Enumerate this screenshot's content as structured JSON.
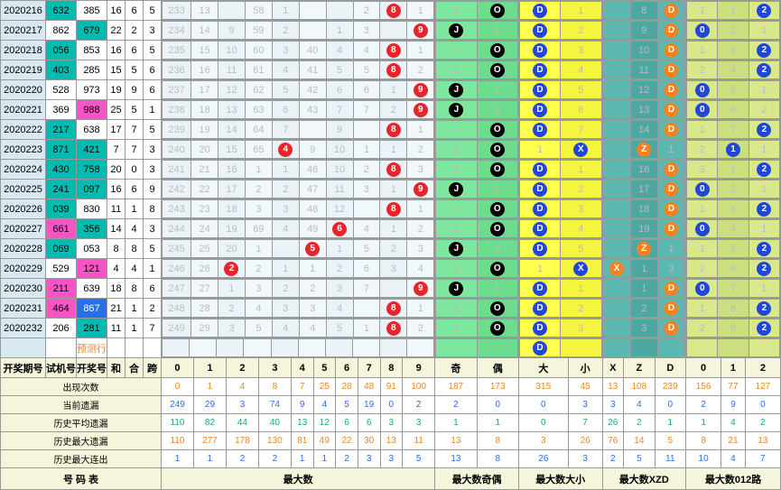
{
  "columns_left": [
    "开奖期号",
    "试机号",
    "开奖号",
    "和",
    "合",
    "跨"
  ],
  "columns_digit": [
    "0",
    "1",
    "2",
    "3",
    "4",
    "5",
    "6",
    "7",
    "8",
    "9"
  ],
  "section_titles": {
    "digit": "最大数",
    "parity": "最大数奇偶",
    "size": "最大数大小",
    "xzd": "最大数XZD",
    "mod": "最大数012路"
  },
  "parity_labels": [
    "奇",
    "偶"
  ],
  "size_labels": [
    "大",
    "小"
  ],
  "xzd_labels": [
    "X",
    "Z",
    "D"
  ],
  "mod_labels": [
    "0",
    "1",
    "2"
  ],
  "predict_label": "预测行",
  "stat_labels": [
    "出现次数",
    "当前遗漏",
    "历史平均遗漏",
    "历史最大遗漏",
    "历史最大连出"
  ],
  "footer": "号 码 表",
  "colors": {
    "cyan": "#00bcb0",
    "mag": "#f954c6",
    "blue2": "#2670e8",
    "red": "#e8252b",
    "black": "#000",
    "blue": "#2047d8",
    "orange": "#f58220",
    "grid_bg": "#eaf4f8",
    "green_bg": "#7de89d",
    "yellow_bg": "#ffff4d",
    "teal_bg": "#5cb8b0",
    "olive_bg": "#d8e88a",
    "beige": "#f5f5dc"
  },
  "rows": [
    {
      "p": "2020216",
      "a": "632",
      "b": "385",
      "c": "16",
      "d": "6",
      "e": "5",
      "ac": "cyan",
      "bc": "",
      "dig": 8,
      "par": "O",
      "sz": "D",
      "xzd": "D",
      "mod": 2,
      "g": [
        233,
        13,
        "",
        58,
        1,
        "",
        "",
        2,
        "",
        1
      ]
    },
    {
      "p": "2020217",
      "a": "862",
      "b": "679",
      "c": "22",
      "d": "2",
      "e": "3",
      "ac": "",
      "bc": "cyan",
      "dig": 9,
      "par": "J",
      "sz": "D",
      "xzd": "D",
      "mod": 0,
      "g": [
        234,
        14,
        9,
        59,
        2,
        "",
        1,
        3,
        "",
        ""
      ]
    },
    {
      "p": "2020218",
      "a": "056",
      "b": "853",
      "c": "16",
      "d": "6",
      "e": "5",
      "ac": "cyan",
      "bc": "",
      "dig": 8,
      "par": "O",
      "sz": "D",
      "xzd": "D",
      "mod": 2,
      "g": [
        235,
        15,
        10,
        60,
        3,
        40,
        4,
        4,
        "",
        1
      ]
    },
    {
      "p": "2020219",
      "a": "403",
      "b": "285",
      "c": "15",
      "d": "5",
      "e": "6",
      "ac": "cyan",
      "bc": "",
      "dig": 8,
      "par": "O",
      "sz": "D",
      "xzd": "D",
      "mod": 2,
      "g": [
        236,
        16,
        11,
        61,
        4,
        41,
        5,
        5,
        "",
        2
      ]
    },
    {
      "p": "2020220",
      "a": "528",
      "b": "973",
      "c": "19",
      "d": "9",
      "e": "6",
      "ac": "",
      "bc": "",
      "dig": 9,
      "par": "J",
      "sz": "D",
      "xzd": "D",
      "mod": 0,
      "g": [
        237,
        17,
        12,
        62,
        5,
        42,
        6,
        6,
        1,
        ""
      ]
    },
    {
      "p": "2020221",
      "a": "369",
      "b": "988",
      "c": "25",
      "d": "5",
      "e": "1",
      "ac": "",
      "bc": "mag",
      "dig": 9,
      "par": "J",
      "sz": "D",
      "xzd": "D",
      "mod": 0,
      "g": [
        238,
        18,
        13,
        63,
        6,
        43,
        7,
        7,
        2,
        ""
      ]
    },
    {
      "p": "2020222",
      "a": "217",
      "b": "638",
      "c": "17",
      "d": "7",
      "e": "5",
      "ac": "cyan",
      "bc": "",
      "dig": 8,
      "par": "O",
      "sz": "D",
      "xzd": "D",
      "mod": 2,
      "g": [
        239,
        19,
        14,
        64,
        7,
        "",
        9,
        "",
        "",
        1
      ]
    },
    {
      "p": "2020223",
      "a": "871",
      "b": "421",
      "c": "7",
      "d": "7",
      "e": "3",
      "ac": "cyan",
      "bc": "cyan",
      "dig": 4,
      "par": "O",
      "sz": "X",
      "xzd": "Z",
      "mod": 1,
      "g": [
        240,
        20,
        15,
        65,
        "",
        9,
        10,
        1,
        1,
        2
      ]
    },
    {
      "p": "2020224",
      "a": "430",
      "b": "758",
      "c": "20",
      "d": "0",
      "e": "3",
      "ac": "cyan",
      "bc": "cyan",
      "dig": 8,
      "par": "O",
      "sz": "D",
      "xzd": "D",
      "mod": 2,
      "g": [
        241,
        21,
        16,
        1,
        1,
        46,
        10,
        2,
        "",
        3
      ]
    },
    {
      "p": "2020225",
      "a": "241",
      "b": "097",
      "c": "16",
      "d": "6",
      "e": "9",
      "ac": "cyan",
      "bc": "cyan",
      "dig": 9,
      "par": "J",
      "sz": "D",
      "xzd": "D",
      "mod": 0,
      "g": [
        242,
        22,
        17,
        2,
        2,
        47,
        11,
        3,
        1,
        ""
      ]
    },
    {
      "p": "2020226",
      "a": "039",
      "b": "830",
      "c": "11",
      "d": "1",
      "e": "8",
      "ac": "cyan",
      "bc": "",
      "dig": 8,
      "par": "O",
      "sz": "D",
      "xzd": "D",
      "mod": 2,
      "g": [
        243,
        23,
        18,
        3,
        3,
        48,
        12,
        "",
        "",
        1
      ]
    },
    {
      "p": "2020227",
      "a": "661",
      "b": "356",
      "c": "14",
      "d": "4",
      "e": "3",
      "ac": "mag",
      "bc": "cyan",
      "dig": 6,
      "par": "O",
      "sz": "D",
      "xzd": "D",
      "mod": 0,
      "g": [
        244,
        24,
        19,
        69,
        4,
        49,
        "",
        4,
        1,
        2
      ]
    },
    {
      "p": "2020228",
      "a": "069",
      "b": "053",
      "c": "8",
      "d": "8",
      "e": "5",
      "ac": "cyan",
      "bc": "",
      "dig": 5,
      "par": "J",
      "sz": "D",
      "xzd": "Z",
      "mod": 2,
      "g": [
        245,
        25,
        20,
        1,
        "",
        "",
        1,
        5,
        2,
        3
      ]
    },
    {
      "p": "2020229",
      "a": "529",
      "b": "121",
      "c": "4",
      "d": "4",
      "e": "1",
      "ac": "",
      "bc": "mag",
      "dig": 2,
      "par": "O",
      "sz": "X",
      "xzd": "X",
      "mod": 2,
      "g": [
        246,
        26,
        "",
        2,
        1,
        1,
        2,
        6,
        3,
        4
      ]
    },
    {
      "p": "2020230",
      "a": "211",
      "b": "639",
      "c": "18",
      "d": "8",
      "e": "6",
      "ac": "mag",
      "bc": "",
      "dig": 9,
      "par": "J",
      "sz": "D",
      "xzd": "D",
      "mod": 0,
      "g": [
        247,
        27,
        1,
        3,
        2,
        2,
        3,
        7,
        "",
        ""
      ]
    },
    {
      "p": "2020231",
      "a": "464",
      "b": "867",
      "c": "21",
      "d": "1",
      "e": "2",
      "ac": "mag",
      "bc": "blue2",
      "dig": 8,
      "par": "O",
      "sz": "D",
      "xzd": "D",
      "mod": 2,
      "g": [
        248,
        28,
        2,
        4,
        3,
        3,
        4,
        "",
        "",
        1
      ]
    },
    {
      "p": "2020232",
      "a": "206",
      "b": "281",
      "c": "11",
      "d": "1",
      "e": "7",
      "ac": "",
      "bc": "cyan",
      "dig": 8,
      "par": "O",
      "sz": "D",
      "xzd": "D",
      "mod": 2,
      "g": [
        249,
        29,
        3,
        5,
        4,
        4,
        5,
        1,
        "",
        2
      ]
    }
  ],
  "predict_extra": {
    "sz": "D"
  },
  "stats": {
    "digit": [
      [
        "0",
        "1",
        "4",
        "8",
        "7",
        "25",
        "28",
        "48",
        "91",
        "100"
      ],
      [
        "249",
        "29",
        "3",
        "74",
        "9",
        "4",
        "5",
        "19",
        "0",
        "2"
      ],
      [
        "110",
        "82",
        "44",
        "40",
        "13",
        "12",
        "6",
        "6",
        "3",
        "3"
      ],
      [
        "110",
        "277",
        "178",
        "130",
        "81",
        "49",
        "22",
        "30",
        "13",
        "11"
      ],
      [
        "1",
        "1",
        "2",
        "2",
        "1",
        "1",
        "2",
        "3",
        "3",
        "5"
      ]
    ],
    "parity": [
      [
        "187",
        "173"
      ],
      [
        "2",
        "0"
      ],
      [
        "1",
        "1"
      ],
      [
        "13",
        "8"
      ],
      [
        "13",
        "8"
      ]
    ],
    "size": [
      [
        "315",
        "45"
      ],
      [
        "0",
        "3"
      ],
      [
        "0",
        "7"
      ],
      [
        "3",
        "26"
      ],
      [
        "26",
        "3"
      ]
    ],
    "xzd": [
      [
        "13",
        "108",
        "239"
      ],
      [
        "3",
        "4",
        "0"
      ],
      [
        "26",
        "2",
        "1"
      ],
      [
        "76",
        "14",
        "5"
      ],
      [
        "2",
        "5",
        "11"
      ]
    ],
    "mod": [
      [
        "156",
        "77",
        "127"
      ],
      [
        "2",
        "9",
        "0"
      ],
      [
        "1",
        "4",
        "2"
      ],
      [
        "8",
        "21",
        "13"
      ],
      [
        "10",
        "4",
        "7"
      ]
    ]
  },
  "grid_extra": {
    "parity_off": {
      "0": [
        "3",
        "1"
      ],
      "1": [
        "",
        "1"
      ],
      "2": [
        "1",
        "2"
      ],
      "3": [
        "2",
        "3"
      ],
      "4": [
        "",
        "1"
      ],
      "5": [
        "",
        "2"
      ],
      "6": [
        "1",
        "1"
      ],
      "7": [
        "2",
        "1"
      ],
      "8": [
        "3",
        "2"
      ],
      "9": [
        "",
        "1"
      ],
      "10": [
        "1",
        "1"
      ],
      "11": [
        "2",
        "2"
      ],
      "12": [
        "",
        "2"
      ],
      "13": [
        "1",
        "1"
      ],
      "14": [
        "",
        "1"
      ],
      "15": [
        "1",
        "2"
      ],
      "16": [
        "2",
        "3"
      ]
    },
    "size_off": {
      "0": [
        "",
        "1"
      ],
      "1": [
        "",
        "2"
      ],
      "2": [
        "",
        "3"
      ],
      "3": [
        "",
        "4"
      ],
      "4": [
        "",
        "5"
      ],
      "5": [
        "",
        "6"
      ],
      "6": [
        "",
        "7"
      ],
      "7": [
        "1",
        ""
      ],
      "8": [
        "",
        "1"
      ],
      "9": [
        "",
        "2"
      ],
      "10": [
        "",
        "3"
      ],
      "11": [
        "",
        "4"
      ],
      "12": [
        "",
        "5"
      ],
      "13": [
        "1",
        ""
      ],
      "14": [
        "",
        "1"
      ],
      "15": [
        "",
        "2"
      ],
      "16": [
        "",
        "3"
      ]
    },
    "xzd_off": {
      "0": [
        "",
        "8",
        ""
      ],
      "1": [
        "",
        "9",
        ""
      ],
      "2": [
        "",
        "10",
        "3"
      ],
      "3": [
        "",
        "11",
        "4"
      ],
      "4": [
        "",
        "12",
        "5"
      ],
      "5": [
        "",
        "13",
        "6"
      ],
      "6": [
        "",
        "14",
        "7"
      ],
      "7": [
        "",
        "15",
        "1"
      ],
      "8": [
        "",
        "16",
        "1"
      ],
      "9": [
        "",
        "17",
        "2"
      ],
      "10": [
        "",
        "18",
        "3"
      ],
      "11": [
        "",
        "19",
        "1"
      ],
      "12": [
        "",
        "20",
        "1"
      ],
      "13": [
        "",
        "1",
        "3"
      ],
      "14": [
        "",
        "1",
        "2"
      ],
      "15": [
        "",
        "2",
        "3"
      ],
      "16": [
        "",
        "3",
        "4"
      ]
    },
    "mod_off": {
      "0": [
        "1",
        "1",
        ""
      ],
      "1": [
        "",
        "2",
        "1"
      ],
      "2": [
        "1",
        "3",
        ""
      ],
      "3": [
        "2",
        "4",
        ""
      ],
      "4": [
        "",
        "5",
        "1"
      ],
      "5": [
        "",
        "6",
        "2"
      ],
      "6": [
        "1",
        "7",
        ""
      ],
      "7": [
        "2",
        "",
        "1"
      ],
      "8": [
        "3",
        "1",
        ""
      ],
      "9": [
        "",
        "2",
        "1"
      ],
      "10": [
        "1",
        "3",
        ""
      ],
      "11": [
        "",
        "4",
        "1"
      ],
      "12": [
        "1",
        "5",
        ""
      ],
      "13": [
        "2",
        "6",
        ""
      ],
      "14": [
        "",
        "7",
        "1"
      ],
      "15": [
        "1",
        "8",
        ""
      ],
      "16": [
        "2",
        "9",
        ""
      ]
    }
  }
}
